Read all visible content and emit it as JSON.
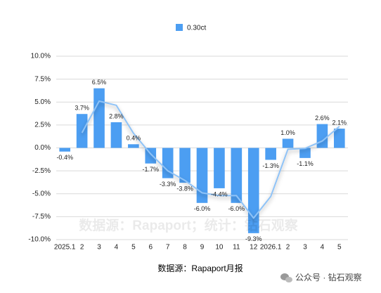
{
  "chart_data": {
    "type": "bar",
    "categories": [
      "2025.1",
      "2",
      "3",
      "4",
      "5",
      "6",
      "7",
      "8",
      "9",
      "10",
      "11",
      "12",
      "2026.1",
      "2",
      "3",
      "4",
      "5"
    ],
    "series": [
      {
        "name": "0.30ct",
        "color": "#4c9ef2",
        "values": [
          -0.4,
          3.7,
          6.5,
          2.8,
          0.4,
          -1.7,
          -3.3,
          -3.8,
          -6.0,
          -4.4,
          -6.0,
          -9.3,
          -1.3,
          1.0,
          -1.1,
          2.6,
          2.1
        ],
        "value_labels": [
          "-0.4%",
          "3.7%",
          "6.5%",
          "2.8%",
          "0.4%",
          "-1.7%",
          "-3.3%",
          "-3.8%",
          "-6.0%",
          "-4.4%",
          "-6.0%",
          "-9.3%",
          "-1.3%",
          "1.0%",
          "-1.1%",
          "2.6%",
          "2.1%"
        ]
      },
      {
        "type": "line",
        "color": "#8fc3f7",
        "values": [
          null,
          1.65,
          5.1,
          4.65,
          1.6,
          -0.65,
          -2.5,
          -3.55,
          -4.9,
          -5.2,
          -5.2,
          -7.65,
          -5.3,
          -0.15,
          -0.05,
          0.75,
          2.35
        ]
      }
    ],
    "ylim": [
      -10,
      10
    ],
    "yticks": [
      {
        "value": -10,
        "label": "-10.0%"
      },
      {
        "value": -7.5,
        "label": "-7.5%"
      },
      {
        "value": -5,
        "label": "-5.0%"
      },
      {
        "value": -2.5,
        "label": "-2.5%"
      },
      {
        "value": 0,
        "label": "0.0%"
      },
      {
        "value": 2.5,
        "label": "2.5%"
      },
      {
        "value": 5,
        "label": "5.0%"
      },
      {
        "value": 7.5,
        "label": "7.5%"
      },
      {
        "value": 10,
        "label": "10.0%"
      }
    ],
    "grid": true,
    "watermark": "数据源：Rapaport；统计：钻石观察",
    "source": "数据源：Rapaport月报",
    "footer": "公众号 · 钻石观察"
  }
}
